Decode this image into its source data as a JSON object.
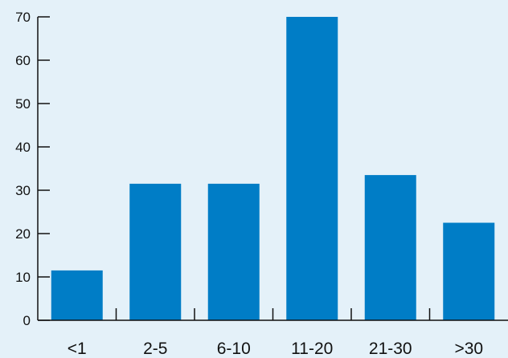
{
  "chart_data": {
    "type": "bar",
    "categories": [
      "<1",
      "2-5",
      "6-10",
      "11-20",
      "21-30",
      ">30"
    ],
    "values": [
      11.5,
      31.5,
      31.5,
      70,
      33.5,
      22.5
    ],
    "title": "",
    "xlabel": "",
    "ylabel": "",
    "ylim": [
      0,
      70
    ],
    "yticks": [
      0,
      10,
      20,
      30,
      40,
      50,
      60,
      70
    ],
    "grid": false,
    "bar_color": "#007dc6",
    "background_color": "#e4f1f9"
  }
}
